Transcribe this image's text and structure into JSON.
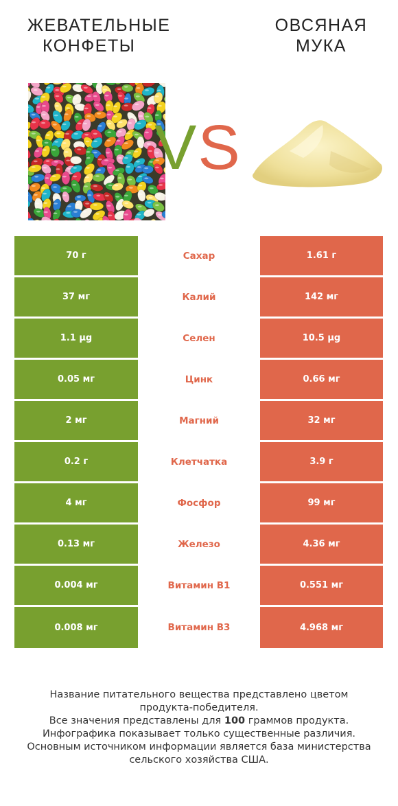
{
  "left_product": {
    "title_line1": "ЖЕВАТЕЛЬНЫЕ",
    "title_line2": "КОНФЕТЫ",
    "color": "#78a02f"
  },
  "right_product": {
    "title_line1": "ОВСЯНАЯ",
    "title_line2": "МУКА",
    "color": "#e0674b"
  },
  "vs": {
    "v": "V",
    "s": "S"
  },
  "rows": [
    {
      "left": "70 г",
      "nutrient": "Сахар",
      "right": "1.61 г"
    },
    {
      "left": "37 мг",
      "nutrient": "Калий",
      "right": "142 мг"
    },
    {
      "left": "1.1 µg",
      "nutrient": "Селен",
      "right": "10.5 µg"
    },
    {
      "left": "0.05 мг",
      "nutrient": "Цинк",
      "right": "0.66 мг"
    },
    {
      "left": "2 мг",
      "nutrient": "Магний",
      "right": "32 мг"
    },
    {
      "left": "0.2 г",
      "nutrient": "Клетчатка",
      "right": "3.9 г"
    },
    {
      "left": "4 мг",
      "nutrient": "Фосфор",
      "right": "99 мг"
    },
    {
      "left": "0.13 мг",
      "nutrient": "Железо",
      "right": "4.36 мг"
    },
    {
      "left": "0.004 мг",
      "nutrient": "Витамин B1",
      "right": "0.551 мг"
    },
    {
      "left": "0.008 мг",
      "nutrient": "Витамин B3",
      "right": "4.968 мг"
    }
  ],
  "footer": {
    "line1": "Название питательного вещества представлено цветом",
    "line2": "продукта-победителя.",
    "line3_a": "Все значения представлены для ",
    "line3_b": "100",
    "line3_c": " граммов продукта.",
    "line4": "Инфографика показывает только существенные различия.",
    "line5": "Основным источником информации является база министерства",
    "line6": "сельского хозяйства США."
  }
}
